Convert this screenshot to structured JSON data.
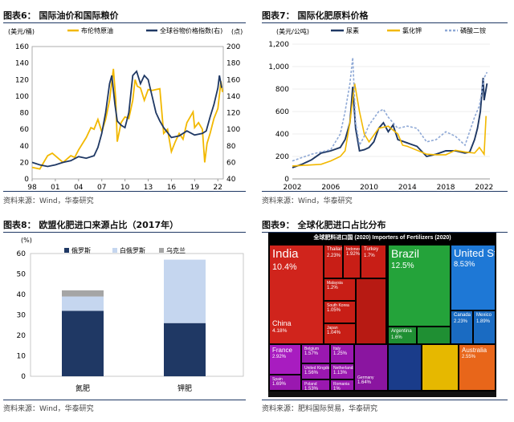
{
  "charts": [
    {
      "title": "图表6：  国际油价和国际粮价",
      "source": "资料来源：Wind，华泰研究",
      "unit_left": "(美元/桶)",
      "unit_right": "(点)",
      "chart_data": {
        "type": "line",
        "x_ticks": [
          "98",
          "01",
          "04",
          "07",
          "10",
          "13",
          "16",
          "19",
          "22"
        ],
        "ylim_left": [
          0,
          160
        ],
        "yticks_left": [
          0,
          20,
          40,
          60,
          80,
          100,
          120,
          140,
          160
        ],
        "ylim_right": [
          40,
          200
        ],
        "yticks_right": [
          40,
          60,
          80,
          100,
          120,
          140,
          160,
          180,
          200
        ],
        "series": [
          {
            "name": "布伦特原油",
            "axis": "left",
            "color": "#f2b800",
            "x": [
              1998,
              1999,
              2000,
              2000.6,
              2001.5,
              2002,
              2003,
              2003.5,
              2004,
              2005,
              2005.6,
              2006,
              2006.5,
              2007,
              2007.5,
              2008,
              2008.5,
              2008.8,
              2009,
              2009.5,
              2010,
              2010.5,
              2011,
              2011.3,
              2011.6,
              2012,
              2012.5,
              2013,
              2013.5,
              2014,
              2014.5,
              2015,
              2015.5,
              2016,
              2016.5,
              2017,
              2017.5,
              2018,
              2018.8,
              2019,
              2019.5,
              2020,
              2020.3,
              2020.6,
              2021,
              2021.5,
              2022,
              2022.4,
              2022.6
            ],
            "y": [
              14,
              12,
              28,
              31,
              24,
              20,
              28,
              26,
              35,
              50,
              62,
              60,
              72,
              57,
              72,
              95,
              133,
              96,
              45,
              68,
              75,
              73,
              95,
              120,
              112,
              110,
              95,
              108,
              107,
              108,
              109,
              55,
              60,
              33,
              45,
              55,
              48,
              68,
              81,
              62,
              68,
              60,
              20,
              43,
              55,
              73,
              85,
              118,
              105
            ]
          },
          {
            "name": "全球谷物价格指数(右)",
            "axis": "right",
            "color": "#1f3864",
            "x": [
              1998,
              1999,
              2000,
              2001,
              2002,
              2003,
              2004,
              2005,
              2006,
              2006.5,
              2007,
              2007.5,
              2008,
              2008.3,
              2008.7,
              2009,
              2009.5,
              2010,
              2010.5,
              2011,
              2011.5,
              2012,
              2012.5,
              2013,
              2013.5,
              2014,
              2014.5,
              2015,
              2016,
              2017,
              2018,
              2019,
              2020,
              2020.5,
              2021,
              2021.5,
              2022,
              2022.2,
              2022.5
            ],
            "y": [
              60,
              57,
              55,
              57,
              60,
              62,
              67,
              65,
              68,
              78,
              95,
              120,
              155,
              165,
              130,
              110,
              105,
              102,
              120,
              165,
              170,
              155,
              165,
              160,
              140,
              120,
              110,
              102,
              90,
              92,
              98,
              93,
              95,
              98,
              115,
              130,
              150,
              165,
              150
            ]
          }
        ]
      }
    },
    {
      "title": "图表7：  国际化肥原料价格",
      "source": "资料来源：Wind，华泰研究",
      "unit_left": "(美元/公吨)",
      "chart_data": {
        "type": "line",
        "x_ticks": [
          "2002",
          "2006",
          "2010",
          "2014",
          "2018",
          "2022"
        ],
        "ylim": [
          0,
          1200
        ],
        "yticks": [
          0,
          200,
          400,
          600,
          800,
          1000,
          1200
        ],
        "series": [
          {
            "name": "尿素",
            "color": "#1f3864",
            "x": [
              2002,
              2003,
              2004,
              2005,
              2006,
              2007,
              2007.5,
              2008,
              2008.3,
              2008.6,
              2009,
              2009.5,
              2010,
              2010.5,
              2011,
              2011.5,
              2012,
              2012.5,
              2013,
              2014,
              2015,
              2016,
              2017,
              2018,
              2019,
              2020,
              2020.5,
              2021,
              2021.3,
              2021.6,
              2021.9,
              2022,
              2022.3
            ],
            "y": [
              100,
              130,
              170,
              230,
              250,
              280,
              350,
              500,
              820,
              450,
              250,
              260,
              280,
              330,
              450,
              500,
              420,
              480,
              350,
              320,
              290,
              200,
              220,
              250,
              250,
              230,
              240,
              350,
              450,
              600,
              900,
              700,
              850
            ]
          },
          {
            "name": "氯化钾",
            "color": "#f2b800",
            "x": [
              2002,
              2005,
              2006,
              2007,
              2007.5,
              2008,
              2008.5,
              2009,
              2009.5,
              2010,
              2011,
              2012,
              2013,
              2013.5,
              2014,
              2016,
              2017,
              2018,
              2019,
              2020,
              2021,
              2021.5,
              2022,
              2022.2
            ],
            "y": [
              115,
              130,
              160,
              200,
              250,
              500,
              850,
              600,
              400,
              330,
              450,
              470,
              400,
              300,
              290,
              220,
              215,
              215,
              255,
              240,
              230,
              280,
              220,
              560
            ]
          },
          {
            "name": "磷酸二铵",
            "color": "#8fa9d6",
            "dashed": true,
            "x": [
              2002,
              2004,
              2006,
              2007,
              2007.5,
              2008,
              2008.3,
              2008.6,
              2009,
              2009.5,
              2010,
              2011,
              2011.5,
              2012,
              2013,
              2014,
              2015,
              2016,
              2017,
              2018,
              2019,
              2020,
              2021,
              2021.5,
              2022,
              2022.3
            ],
            "y": [
              160,
              220,
              260,
              400,
              600,
              850,
              1080,
              500,
              300,
              380,
              480,
              600,
              620,
              550,
              450,
              470,
              450,
              330,
              350,
              420,
              380,
              300,
              550,
              650,
              900,
              950
            ]
          }
        ]
      }
    },
    {
      "title": "图表8：  欧盟化肥进口来源占比（2017年）",
      "source": "资料来源：Wind，华泰研究",
      "unit_left": "(%)",
      "chart_data": {
        "type": "bar",
        "stacked": true,
        "categories": [
          "氮肥",
          "钾肥"
        ],
        "ylim": [
          0,
          60
        ],
        "yticks": [
          0,
          10,
          20,
          30,
          40,
          50,
          60
        ],
        "series": [
          {
            "name": "俄罗斯",
            "color": "#1f3864",
            "values": [
              32,
              26
            ]
          },
          {
            "name": "白俄罗斯",
            "color": "#c5d6ef",
            "values": [
              7,
              31
            ]
          },
          {
            "name": "乌克兰",
            "color": "#a5a5a5",
            "values": [
              3,
              0
            ]
          }
        ]
      }
    },
    {
      "title": "图表9：  全球化肥进口占比分布",
      "source": "资料来源：肥料国际贸易，华泰研究",
      "treemap_title": "全球肥料进口国 (2020)    Importers of Fertilizers (2020)",
      "chart_data": {
        "type": "treemap",
        "items": [
          {
            "name": "India",
            "value": "10.4%"
          },
          {
            "name": "China",
            "value": "4.18%"
          },
          {
            "name": "Thailand",
            "value": "2.23%"
          },
          {
            "name": "Indonesia",
            "value": "1.92%"
          },
          {
            "name": "Turkey",
            "value": "1.7%"
          },
          {
            "name": "Malaysia",
            "value": "1.2%"
          },
          {
            "name": "South Korea",
            "value": "1.05%"
          },
          {
            "name": "Japan",
            "value": "1.04%"
          },
          {
            "name": "Brazil",
            "value": "12.5%"
          },
          {
            "name": "Argentina",
            "value": "1.6%"
          },
          {
            "name": "United States",
            "value": "8.53%"
          },
          {
            "name": "Canada",
            "value": "2.23%"
          },
          {
            "name": "Mexico",
            "value": "1.89%"
          },
          {
            "name": "France",
            "value": "2.92%"
          },
          {
            "name": "Belgium",
            "value": "1.57%"
          },
          {
            "name": "United Kingdom",
            "value": "1.56%"
          },
          {
            "name": "Italy",
            "value": "1.25%"
          },
          {
            "name": "Netherlands",
            "value": "1.13%"
          },
          {
            "name": "Spain",
            "value": "1.69%"
          },
          {
            "name": "Poland",
            "value": "1.53%"
          },
          {
            "name": "Romania",
            "value": "1%"
          },
          {
            "name": "Germany",
            "value": "1.64%"
          },
          {
            "name": "Ukraine",
            "value": "1.59%"
          },
          {
            "name": "Estonia",
            "value": "0.8%"
          },
          {
            "name": "Australia",
            "value": "2.55%"
          }
        ]
      }
    }
  ]
}
